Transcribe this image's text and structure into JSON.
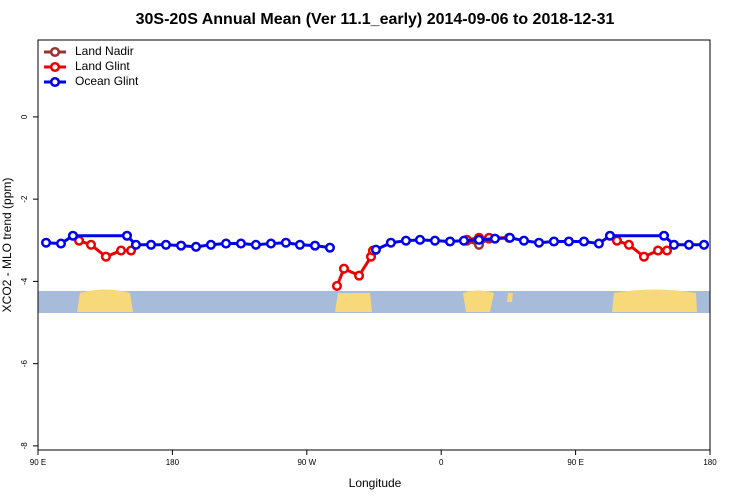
{
  "chart_data": {
    "type": "line",
    "title": "30S-20S Annual Mean (Ver 11.1_early)   2014-09-06 to 2018-12-31",
    "x_label": "Longitude",
    "y_label": "XCO2 - MLO trend (ppm)",
    "xlim": [
      90,
      540
    ],
    "ylim": [
      -8.1,
      1.87
    ],
    "xticks": [
      {
        "value": 90,
        "label": "90 E"
      },
      {
        "value": 180,
        "label": "180"
      },
      {
        "value": 270,
        "label": "90 W"
      },
      {
        "value": 360,
        "label": "0"
      },
      {
        "value": 450,
        "label": "90 E"
      },
      {
        "value": 540,
        "label": "180"
      }
    ],
    "yticks": [
      0,
      -2,
      -4,
      -6,
      -8
    ],
    "legend": "top-left",
    "series": [
      {
        "name": "Land Nadir",
        "color": "#993333",
        "x": [
          377.2,
          385.3,
          392.0
        ],
        "values": [
          -3.01,
          -3.11,
          -2.96
        ]
      },
      {
        "name": "Land Glint",
        "color": "#ee0000",
        "x": [
          117.5,
          125.5,
          135.5,
          145.6,
          152.3,
          220,
          290.2,
          294.9,
          305.0,
          313.0,
          314.3,
          350,
          377.2,
          385.3,
          392.0,
          405.4,
          440,
          477.7,
          485.7,
          495.8,
          505.2,
          511.2
        ],
        "values": [
          -3.01,
          -3.11,
          -3.4,
          -3.25,
          -3.25,
          null,
          -4.11,
          -3.69,
          -3.86,
          -3.4,
          -3.25,
          null,
          -2.99,
          -2.94,
          -2.94,
          -2.94,
          null,
          -3.01,
          -3.11,
          -3.4,
          -3.25,
          -3.25
        ]
      },
      {
        "name": "Ocean Glint",
        "color": "#0000ee",
        "x": [
          95.4,
          105.4,
          113.4,
          149.6,
          155.6,
          165.7,
          175.7,
          185.8,
          195.8,
          205.8,
          215.9,
          225.9,
          235.9,
          246.0,
          256.0,
          265.4,
          275.5,
          285.5,
          300,
          316.3,
          326.3,
          336.4,
          345.8,
          355.8,
          365.9,
          375.2,
          385.3,
          396.0,
          406.0,
          415.4,
          425.5,
          435.5,
          445.5,
          455.6,
          465.6,
          473.0,
          509.2,
          515.9,
          525.9,
          536.0
        ],
        "values": [
          -3.06,
          -3.08,
          -2.89,
          -2.89,
          -3.11,
          -3.11,
          -3.11,
          -3.13,
          -3.16,
          -3.11,
          -3.08,
          -3.08,
          -3.11,
          -3.08,
          -3.06,
          -3.11,
          -3.13,
          -3.18,
          null,
          -3.23,
          -3.06,
          -3.01,
          -2.99,
          -3.01,
          -3.03,
          -3.01,
          -2.99,
          -2.96,
          -2.94,
          -3.01,
          -3.06,
          -3.03,
          -3.03,
          -3.03,
          -3.08,
          -2.89,
          -2.89,
          -3.11,
          -3.11,
          -3.11
        ]
      }
    ]
  }
}
